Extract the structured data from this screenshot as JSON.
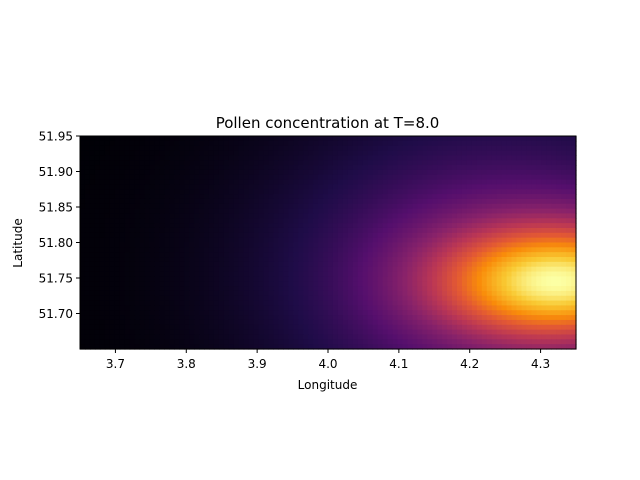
{
  "chart_data": {
    "type": "heatmap",
    "title": "Pollen concentration at T=8.0",
    "xlabel": "Longitude",
    "ylabel": "Latitude",
    "xlim": [
      3.65,
      4.35
    ],
    "ylim": [
      51.65,
      51.95
    ],
    "x_ticks": [
      3.7,
      3.8,
      3.9,
      4.0,
      4.1,
      4.2,
      4.3
    ],
    "x_tick_labels": [
      "3.7",
      "3.8",
      "3.9",
      "4.0",
      "4.1",
      "4.2",
      "4.3"
    ],
    "y_ticks": [
      51.7,
      51.75,
      51.8,
      51.85,
      51.9,
      51.95
    ],
    "y_tick_labels": [
      "51.70",
      "51.75",
      "51.80",
      "51.85",
      "51.90",
      "51.95"
    ],
    "colormap": "inferno",
    "grid": false,
    "legend": "none",
    "peak": {
      "x": 4.33,
      "y": 51.745
    },
    "sources": [
      {
        "x": 4.33,
        "y": 51.745,
        "amplitude": 1.0,
        "sigma_x": 0.12,
        "sigma_y": 0.055
      },
      {
        "x": 4.25,
        "y": 51.75,
        "amplitude": 0.45,
        "sigma_x": 0.22,
        "sigma_y": 0.16
      }
    ]
  }
}
